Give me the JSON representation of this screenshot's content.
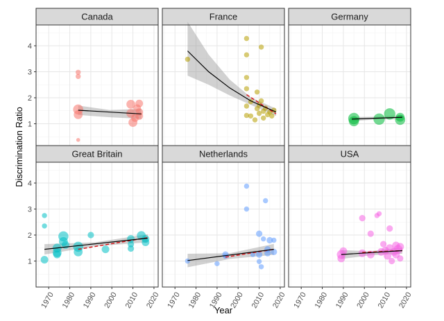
{
  "chart_data": {
    "type": "scatter",
    "layout": "faceted 2x3 grid, shared axes",
    "xlabel": "Year",
    "ylabel": "Discrimination Ratio",
    "xlim": [
      1964,
      2022
    ],
    "ylim": [
      0,
      4.8
    ],
    "x_ticks": [
      1970,
      1980,
      1990,
      2000,
      2010,
      2020
    ],
    "y_ticks": [
      1,
      2,
      3,
      4
    ],
    "grid": true,
    "facets": [
      {
        "name": "Canada",
        "color": "#F8766D",
        "points": [
          {
            "x": 1984,
            "y": 1.55,
            "s": 7
          },
          {
            "x": 1984,
            "y": 1.35,
            "s": 6
          },
          {
            "x": 1984,
            "y": 2.98,
            "s": 3
          },
          {
            "x": 1984,
            "y": 2.82,
            "s": 3
          },
          {
            "x": 1984,
            "y": 0.38,
            "s": 2
          },
          {
            "x": 2009,
            "y": 1.75,
            "s": 6
          },
          {
            "x": 2009,
            "y": 1.4,
            "s": 6
          },
          {
            "x": 2010,
            "y": 1.05,
            "s": 6
          },
          {
            "x": 2011,
            "y": 1.22,
            "s": 5
          },
          {
            "x": 2012,
            "y": 1.6,
            "s": 5
          },
          {
            "x": 2013,
            "y": 1.3,
            "s": 5
          },
          {
            "x": 2013,
            "y": 1.78,
            "s": 5
          },
          {
            "x": 2013,
            "y": 1.45,
            "s": 5
          }
        ],
        "fit": {
          "x": [
            1984,
            2014
          ],
          "y": [
            1.52,
            1.38
          ]
        },
        "band": {
          "x": [
            1984,
            1999,
            2014
          ],
          "upper": [
            1.7,
            1.53,
            1.57
          ],
          "lower": [
            1.34,
            1.25,
            1.19
          ]
        },
        "dashed": null
      },
      {
        "name": "France",
        "color": "#B79F00",
        "points": [
          {
            "x": 1976,
            "y": 3.48,
            "s": 3
          },
          {
            "x": 2004,
            "y": 4.28,
            "s": 3
          },
          {
            "x": 2004,
            "y": 3.65,
            "s": 3
          },
          {
            "x": 2004,
            "y": 2.78,
            "s": 3
          },
          {
            "x": 2004,
            "y": 2.35,
            "s": 3
          },
          {
            "x": 2004,
            "y": 1.68,
            "s": 3
          },
          {
            "x": 2004,
            "y": 1.32,
            "s": 3
          },
          {
            "x": 2006,
            "y": 1.3,
            "s": 3
          },
          {
            "x": 2006,
            "y": 1.85,
            "s": 3
          },
          {
            "x": 2008,
            "y": 1.15,
            "s": 3
          },
          {
            "x": 2009,
            "y": 2.22,
            "s": 3
          },
          {
            "x": 2009,
            "y": 1.58,
            "s": 3
          },
          {
            "x": 2010,
            "y": 1.72,
            "s": 3
          },
          {
            "x": 2010,
            "y": 1.4,
            "s": 3
          },
          {
            "x": 2011,
            "y": 3.95,
            "s": 3
          },
          {
            "x": 2011,
            "y": 1.88,
            "s": 3
          },
          {
            "x": 2012,
            "y": 1.48,
            "s": 3
          },
          {
            "x": 2012,
            "y": 1.22,
            "s": 3
          },
          {
            "x": 2013,
            "y": 1.6,
            "s": 3
          },
          {
            "x": 2014,
            "y": 1.35,
            "s": 3
          },
          {
            "x": 2015,
            "y": 1.45,
            "s": 3
          },
          {
            "x": 2016,
            "y": 1.3,
            "s": 3
          },
          {
            "x": 2017,
            "y": 1.52,
            "s": 3
          }
        ],
        "fit": {
          "x": [
            1976,
            1986,
            1996,
            2006,
            2018
          ],
          "y": [
            3.8,
            3.0,
            2.38,
            1.88,
            1.45
          ]
        },
        "band": {
          "x": [
            1976,
            1986,
            1996,
            2006,
            2018
          ],
          "upper": [
            4.92,
            3.66,
            2.7,
            2.02,
            1.58
          ],
          "lower": [
            2.85,
            2.5,
            2.09,
            1.73,
            1.3
          ]
        },
        "dashed": {
          "x": [
            2004,
            2018
          ],
          "y": [
            2.12,
            1.38
          ]
        }
      },
      {
        "name": "Germany",
        "color": "#00BA38",
        "points": [
          {
            "x": 1995,
            "y": 1.2,
            "s": 8
          },
          {
            "x": 1995,
            "y": 1.1,
            "s": 7
          },
          {
            "x": 2007,
            "y": 1.18,
            "s": 8
          },
          {
            "x": 2012,
            "y": 1.38,
            "s": 8
          },
          {
            "x": 2017,
            "y": 1.15,
            "s": 7
          },
          {
            "x": 2017,
            "y": 1.25,
            "s": 6
          }
        ],
        "fit": {
          "x": [
            1994,
            2018
          ],
          "y": [
            1.18,
            1.25
          ]
        },
        "band": {
          "x": [
            1994,
            2006,
            2018
          ],
          "upper": [
            1.26,
            1.27,
            1.33
          ],
          "lower": [
            1.1,
            1.17,
            1.17
          ]
        },
        "dashed": null
      },
      {
        "name": "Great Britain",
        "color": "#00BFC4",
        "points": [
          {
            "x": 1968,
            "y": 2.75,
            "s": 3
          },
          {
            "x": 1968,
            "y": 2.35,
            "s": 3
          },
          {
            "x": 1968,
            "y": 1.05,
            "s": 5
          },
          {
            "x": 1974,
            "y": 1.5,
            "s": 6
          },
          {
            "x": 1974,
            "y": 1.32,
            "s": 6
          },
          {
            "x": 1974,
            "y": 1.25,
            "s": 5
          },
          {
            "x": 1977,
            "y": 1.95,
            "s": 7
          },
          {
            "x": 1977,
            "y": 1.75,
            "s": 6
          },
          {
            "x": 1978,
            "y": 1.62,
            "s": 5
          },
          {
            "x": 1984,
            "y": 1.55,
            "s": 7
          },
          {
            "x": 1984,
            "y": 1.35,
            "s": 6
          },
          {
            "x": 1990,
            "y": 2.0,
            "s": 4
          },
          {
            "x": 1997,
            "y": 1.45,
            "s": 5
          },
          {
            "x": 2009,
            "y": 1.85,
            "s": 5
          },
          {
            "x": 2009,
            "y": 1.65,
            "s": 4
          },
          {
            "x": 2009,
            "y": 1.48,
            "s": 4
          },
          {
            "x": 2014,
            "y": 1.98,
            "s": 6
          },
          {
            "x": 2016,
            "y": 1.85,
            "s": 5
          },
          {
            "x": 2016,
            "y": 1.72,
            "s": 5
          }
        ],
        "fit": {
          "x": [
            1968,
            2017
          ],
          "y": [
            1.45,
            1.88
          ]
        },
        "band": {
          "x": [
            1968,
            1992,
            2017
          ],
          "upper": [
            1.65,
            1.72,
            2.03
          ],
          "lower": [
            1.25,
            1.57,
            1.72
          ]
        },
        "dashed": {
          "x": [
            1984,
            2017
          ],
          "y": [
            1.45,
            1.9
          ]
        }
      },
      {
        "name": "Netherlands",
        "color": "#619CFF",
        "points": [
          {
            "x": 1976,
            "y": 1.0,
            "s": 3
          },
          {
            "x": 1990,
            "y": 0.9,
            "s": 3
          },
          {
            "x": 1994,
            "y": 1.25,
            "s": 4
          },
          {
            "x": 1994,
            "y": 1.18,
            "s": 3
          },
          {
            "x": 2004,
            "y": 3.88,
            "s": 3
          },
          {
            "x": 2004,
            "y": 3.0,
            "s": 3
          },
          {
            "x": 2007,
            "y": 1.25,
            "s": 3
          },
          {
            "x": 2010,
            "y": 2.05,
            "s": 4
          },
          {
            "x": 2010,
            "y": 1.25,
            "s": 4
          },
          {
            "x": 2010,
            "y": 0.98,
            "s": 3
          },
          {
            "x": 2011,
            "y": 0.78,
            "s": 3
          },
          {
            "x": 2012,
            "y": 1.85,
            "s": 3
          },
          {
            "x": 2013,
            "y": 3.32,
            "s": 3
          },
          {
            "x": 2014,
            "y": 1.45,
            "s": 4
          },
          {
            "x": 2014,
            "y": 1.3,
            "s": 4
          },
          {
            "x": 2015,
            "y": 1.8,
            "s": 4
          },
          {
            "x": 2017,
            "y": 1.35,
            "s": 4
          },
          {
            "x": 2017,
            "y": 1.8,
            "s": 3
          }
        ],
        "fit": {
          "x": [
            1976,
            2017
          ],
          "y": [
            1.02,
            1.45
          ]
        },
        "band": {
          "x": [
            1976,
            1996,
            2017
          ],
          "upper": [
            1.28,
            1.3,
            1.66
          ],
          "lower": [
            0.76,
            1.08,
            1.24
          ]
        },
        "dashed": {
          "x": [
            1994,
            2017
          ],
          "y": [
            1.15,
            1.45
          ]
        }
      },
      {
        "name": "USA",
        "color": "#F564E3",
        "points": [
          {
            "x": 1989,
            "y": 1.25,
            "s": 6
          },
          {
            "x": 1989,
            "y": 1.1,
            "s": 5
          },
          {
            "x": 1990,
            "y": 1.38,
            "s": 5
          },
          {
            "x": 1999,
            "y": 2.65,
            "s": 4
          },
          {
            "x": 1999,
            "y": 1.3,
            "s": 5
          },
          {
            "x": 2003,
            "y": 2.05,
            "s": 4
          },
          {
            "x": 2003,
            "y": 1.25,
            "s": 5
          },
          {
            "x": 2006,
            "y": 2.75,
            "s": 3
          },
          {
            "x": 2007,
            "y": 2.82,
            "s": 3
          },
          {
            "x": 2008,
            "y": 1.35,
            "s": 5
          },
          {
            "x": 2009,
            "y": 1.65,
            "s": 4
          },
          {
            "x": 2010,
            "y": 1.4,
            "s": 5
          },
          {
            "x": 2011,
            "y": 1.2,
            "s": 5
          },
          {
            "x": 2012,
            "y": 2.25,
            "s": 4
          },
          {
            "x": 2012,
            "y": 1.5,
            "s": 5
          },
          {
            "x": 2013,
            "y": 1.0,
            "s": 4
          },
          {
            "x": 2014,
            "y": 1.35,
            "s": 5
          },
          {
            "x": 2015,
            "y": 1.6,
            "s": 5
          },
          {
            "x": 2015,
            "y": 1.25,
            "s": 5
          },
          {
            "x": 2016,
            "y": 1.45,
            "s": 6
          },
          {
            "x": 2017,
            "y": 1.55,
            "s": 5
          },
          {
            "x": 2017,
            "y": 1.1,
            "s": 4
          }
        ],
        "fit": {
          "x": [
            1989,
            2018
          ],
          "y": [
            1.25,
            1.4
          ]
        },
        "band": {
          "x": [
            1989,
            2003,
            2018
          ],
          "upper": [
            1.42,
            1.38,
            1.52
          ],
          "lower": [
            1.08,
            1.22,
            1.28
          ]
        },
        "dashed": {
          "x": [
            1999,
            2018
          ],
          "y": [
            1.33,
            1.4
          ]
        }
      }
    ]
  }
}
